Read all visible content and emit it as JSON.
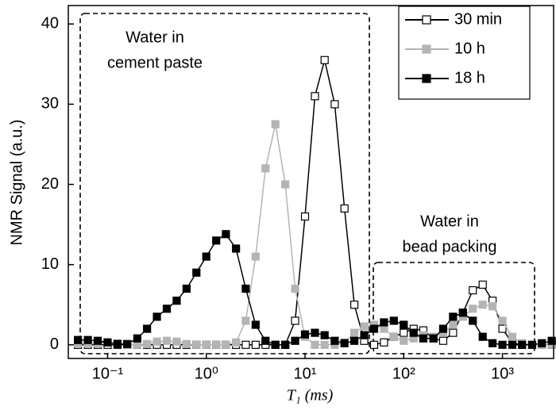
{
  "chart_data": {
    "type": "line",
    "x_label": "T₁ (ms)",
    "y_label": "NMR Signal (a.u.)",
    "annotations": [
      [
        "Water in",
        "cement paste"
      ],
      [
        "Water in",
        "bead packing"
      ]
    ],
    "x_scale": "log",
    "xlim": [
      0.04,
      3300
    ],
    "xticks": [
      {
        "value": 0.1,
        "label": "10⁻¹"
      },
      {
        "value": 1,
        "label": "10⁰"
      },
      {
        "value": 10,
        "label": "10¹"
      },
      {
        "value": 100,
        "label": "10²"
      },
      {
        "value": 1000,
        "label": "10³"
      }
    ],
    "ylim": [
      -1.7,
      42.3
    ],
    "yticks": [
      0,
      10,
      20,
      30,
      40
    ],
    "legend": "upper right",
    "x": [
      0.0501,
      0.0631,
      0.0794,
      0.1,
      0.126,
      0.158,
      0.2,
      0.251,
      0.316,
      0.398,
      0.501,
      0.631,
      0.794,
      1,
      1.26,
      1.58,
      2,
      2.51,
      3.16,
      3.98,
      5.01,
      6.31,
      7.94,
      10,
      12.6,
      15.8,
      20,
      25.1,
      31.6,
      39.8,
      50.1,
      63.1,
      79.4,
      100,
      126,
      158,
      200,
      251,
      316,
      398,
      501,
      631,
      794,
      1000,
      1260,
      1580,
      2000,
      2510,
      3160
    ],
    "series": [
      {
        "name": "30 min",
        "color": "#000000",
        "marker": "open-square",
        "values": [
          0,
          0,
          0,
          0,
          0,
          0,
          0,
          0,
          0,
          0,
          0,
          0,
          0,
          0,
          0,
          0,
          0,
          0,
          0,
          0,
          0,
          0,
          3,
          16,
          31,
          35.5,
          30,
          17,
          5,
          0.5,
          0,
          0.3,
          1,
          1.5,
          2,
          1.8,
          0.8,
          0.5,
          1.5,
          4,
          6.8,
          7.5,
          5.5,
          2,
          0.2,
          0,
          0,
          0,
          0
        ]
      },
      {
        "name": "10 h",
        "color": "#b4b4b4",
        "marker": "square",
        "values": [
          0.2,
          0.2,
          0.2,
          0.3,
          0.2,
          0,
          0,
          0.1,
          0.4,
          0.5,
          0.4,
          0.1,
          0,
          0,
          0,
          0,
          0.3,
          3,
          11,
          22,
          27.5,
          20,
          7,
          1,
          0,
          0,
          0,
          0.3,
          1.5,
          2.3,
          2.5,
          2,
          1,
          0.5,
          0.8,
          1.2,
          1,
          1.5,
          2.5,
          3.5,
          4.5,
          5,
          4.8,
          3,
          1,
          0.2,
          0,
          0,
          0
        ]
      },
      {
        "name": "18 h",
        "color": "#000000",
        "marker": "square",
        "values": [
          0.6,
          0.6,
          0.5,
          0.3,
          0.1,
          0.1,
          0.8,
          2,
          3.5,
          4.5,
          5.5,
          7,
          9,
          11,
          13,
          13.8,
          12,
          7,
          2.5,
          0.5,
          0,
          0,
          0.5,
          1.3,
          1.5,
          1.2,
          0.5,
          0.2,
          0.5,
          1.2,
          2,
          2.8,
          3,
          2.5,
          1.5,
          0.8,
          0.8,
          2,
          3.5,
          4,
          3,
          1,
          0.2,
          0,
          0,
          0,
          0,
          0.2,
          0.5
        ]
      }
    ]
  }
}
